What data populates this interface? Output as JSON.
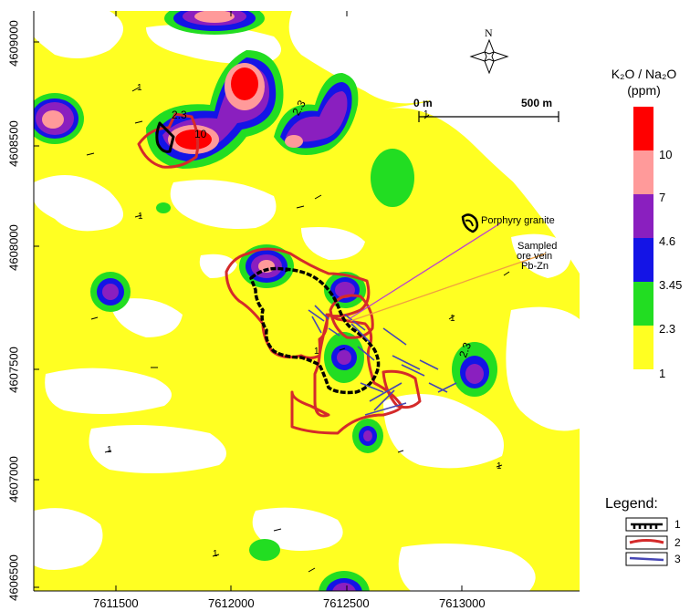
{
  "map": {
    "north_label": "N",
    "scale_bar": {
      "start_label": "0 m",
      "end_label": "500 m"
    },
    "y_ticks": [
      "4609000",
      "4608500",
      "4608000",
      "4607500",
      "4607000",
      "4606500"
    ],
    "x_ticks": [
      "7611500",
      "7612000",
      "7612500",
      "7613000"
    ],
    "annotations": {
      "porphyry_granite": "Porphyry granite",
      "sampled_ore_vein_line1": "Sampled",
      "sampled_ore_vein_line2": "ore vein",
      "sampled_ore_vein_line3": "Pb-Zn"
    },
    "contour_labels": [
      "2.3",
      "10",
      "2.3",
      "2.3",
      "1",
      "1",
      "1",
      "1",
      "1",
      "1",
      "1",
      "1"
    ]
  },
  "colorbar": {
    "title_line1": "K₂O / Na₂O",
    "title_line2": "(ppm)",
    "labels": [
      "10",
      "7",
      "4.6",
      "3.45",
      "2.3",
      "1"
    ],
    "colors": [
      "#ff0000",
      "#ff9a9a",
      "#8a1fbf",
      "#1414e6",
      "#22dd22",
      "#ffff22"
    ]
  },
  "legend": {
    "caption": "Legend:",
    "items": [
      {
        "number": "1",
        "style": "black-hatched-line",
        "color": "#000000"
      },
      {
        "number": "2",
        "style": "red-line",
        "color": "#d42a2a"
      },
      {
        "number": "3",
        "style": "blue-line",
        "color": "#4646b4"
      }
    ]
  },
  "colors": {
    "background": "#ffff22",
    "blank": "#ffffff",
    "red_outline": "#d42a2a",
    "granite_outline": "#000000",
    "vein_lines": "#4646b4",
    "pointer_magenta": "#bb44cc",
    "pointer_orange": "#f0a040"
  }
}
